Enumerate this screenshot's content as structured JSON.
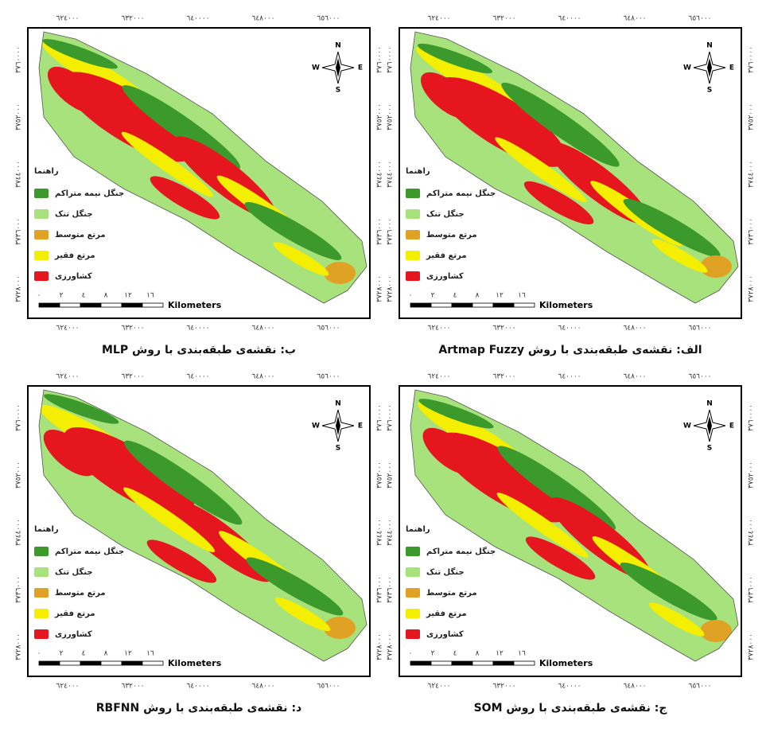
{
  "panels": [
    {
      "caption": "ب: نقشه‌ی طبقه‌بندی با روش MLP"
    },
    {
      "caption": "الف: نقشه‌ی طبقه‌بندی با روش Artmap Fuzzy"
    },
    {
      "caption": "د: نقشه‌ی طبقه‌بندی با روش RBFNN"
    },
    {
      "caption": "ج: نقشه‌ی طبقه‌بندی با روش SOM"
    }
  ],
  "x_ticks": [
    "٦٢٤٠٠٠",
    "٦٣٢٠٠٠",
    "٦٤٠٠٠٠",
    "٦٤٨٠٠٠",
    "٦٥٦٠٠٠"
  ],
  "y_ticks": [
    "٣٧٦٠٠٠٠",
    "٣٧٥٢٠٠٠",
    "٣٧٤٤٠٠٠",
    "٣٧٣٦٠٠٠",
    "٣٧٢٨٠٠٠"
  ],
  "legend": {
    "title": "راهنما",
    "items": [
      {
        "label": "جنگل نیمه متراکم",
        "color": "#3c9a2c"
      },
      {
        "label": "جنگل تنک",
        "color": "#a8e27c"
      },
      {
        "label": "مرتع متوسط",
        "color": "#e0a224"
      },
      {
        "label": "مرتع فقیر",
        "color": "#f4ee00"
      },
      {
        "label": "کشاورزی",
        "color": "#e6161e"
      }
    ]
  },
  "scale": {
    "labels": [
      "٠",
      "٢",
      "٤",
      "٨",
      "١٢",
      "١٦"
    ],
    "unit": "Kilometers"
  },
  "compass": {
    "n": "N",
    "s": "S",
    "e": "E",
    "w": "W"
  }
}
